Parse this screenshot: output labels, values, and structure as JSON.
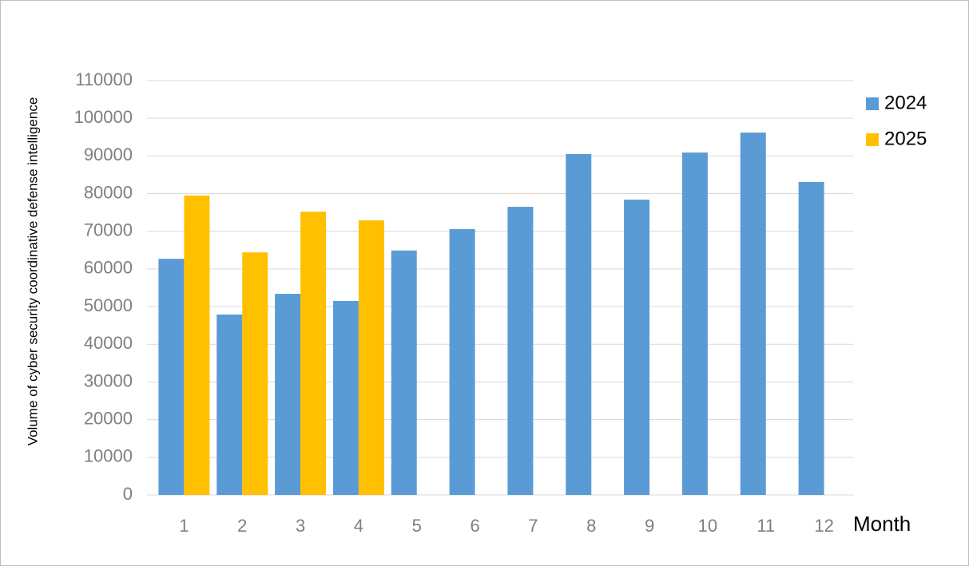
{
  "chart_data": {
    "type": "bar",
    "y_label": "Volume of cyber security coordinative defense intelligence",
    "x_label": "Month",
    "categories": [
      "1",
      "2",
      "3",
      "4",
      "5",
      "6",
      "7",
      "8",
      "9",
      "10",
      "11",
      "12"
    ],
    "series": [
      {
        "name": "2024",
        "color": "#5b9bd5",
        "values": [
          62700,
          47900,
          53400,
          51500,
          64900,
          70600,
          76500,
          90500,
          78400,
          90900,
          96200,
          83100
        ]
      },
      {
        "name": "2025",
        "color": "#ffc000",
        "values": [
          79500,
          64400,
          75200,
          72900,
          null,
          null,
          null,
          null,
          null,
          null,
          null,
          null
        ]
      }
    ],
    "ylim": [
      0,
      110000
    ],
    "yticks": [
      0,
      10000,
      20000,
      30000,
      40000,
      50000,
      60000,
      70000,
      80000,
      90000,
      100000,
      110000
    ],
    "grid": true,
    "legend": "right"
  }
}
